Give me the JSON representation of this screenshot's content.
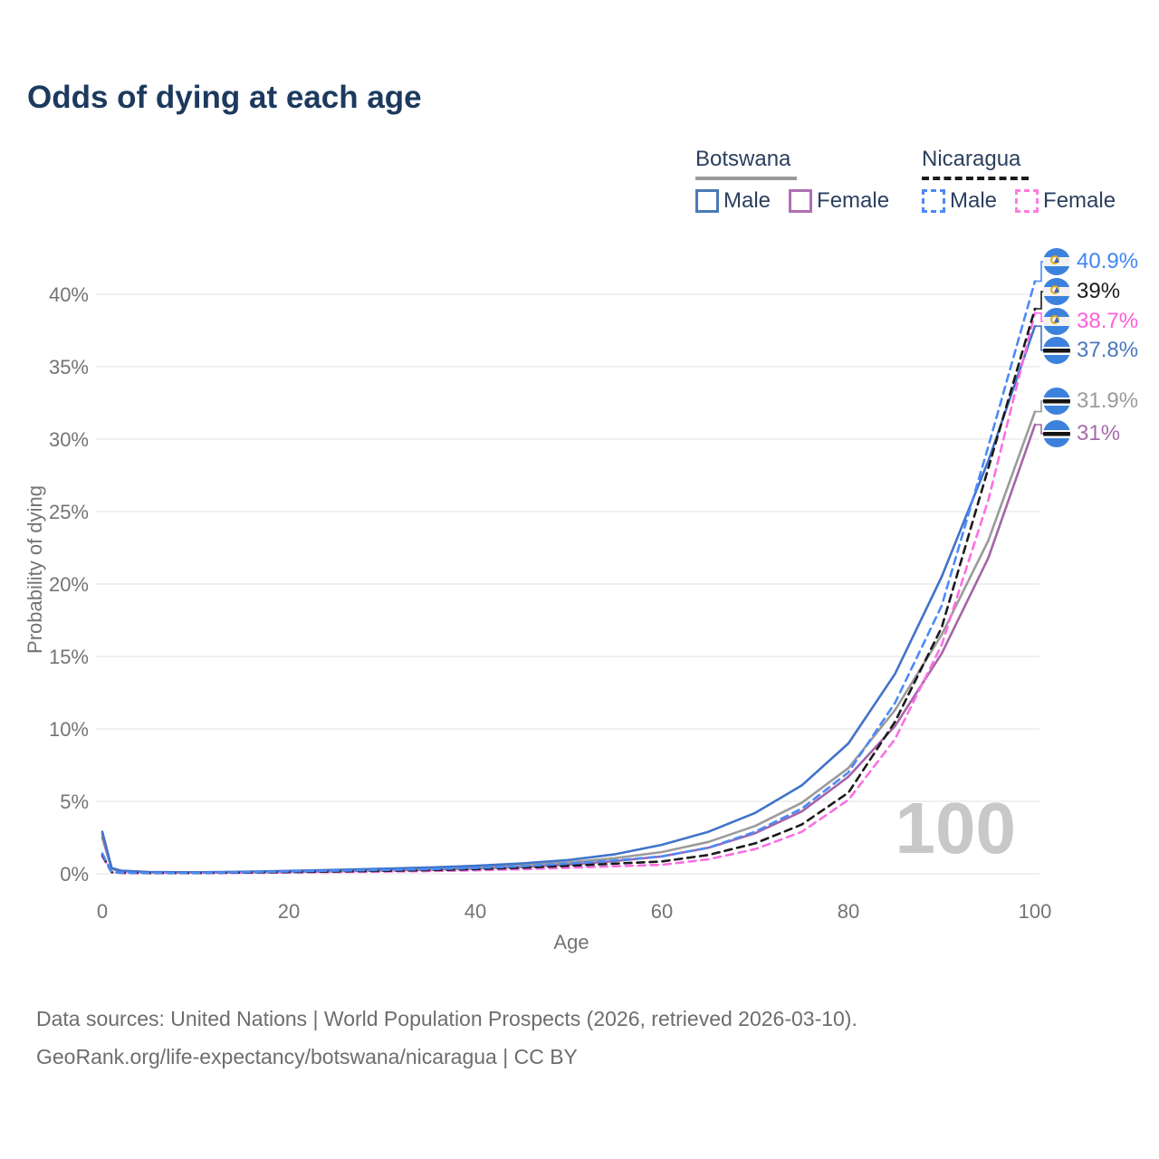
{
  "title": "Odds of dying at each age",
  "legend": {
    "botswana": {
      "label": "Botswana",
      "male": "Male",
      "female": "Female"
    },
    "nicaragua": {
      "label": "Nicaragua",
      "male": "Male",
      "female": "Female"
    }
  },
  "watermark": "100",
  "footer": {
    "line1": "Data sources: United Nations | World Population Prospects (2026, retrieved 2026-03-10).",
    "line2": "GeoRank.org/life-expectancy/botswana/nicaragua | CC BY"
  },
  "colors": {
    "title": "#1c3a5e",
    "axis_text": "#747474",
    "gridline": "#e7e7e7",
    "watermark": "#c8c8c8",
    "footer_text": "#6d6d6d"
  },
  "chart_data": {
    "type": "line",
    "title": "Odds of dying at each age",
    "xlabel": "Age",
    "ylabel": "Probability of dying",
    "xlim": [
      0,
      100
    ],
    "ylim": [
      0,
      42.5
    ],
    "grid": "horizontal",
    "legend_position": "top-right",
    "x_ticks": [
      0,
      20,
      40,
      60,
      80,
      100
    ],
    "y_ticks": [
      {
        "value": 0,
        "label": "0%"
      },
      {
        "value": 5,
        "label": "5%"
      },
      {
        "value": 10,
        "label": "10%"
      },
      {
        "value": 15,
        "label": "15%"
      },
      {
        "value": 20,
        "label": "20%"
      },
      {
        "value": 25,
        "label": "25%"
      },
      {
        "value": 30,
        "label": "30%"
      },
      {
        "value": 35,
        "label": "35%"
      },
      {
        "value": 40,
        "label": "40%"
      }
    ],
    "ages": [
      0,
      1,
      2,
      5,
      10,
      15,
      20,
      25,
      30,
      35,
      40,
      45,
      50,
      55,
      60,
      65,
      70,
      75,
      80,
      85,
      90,
      95,
      100
    ],
    "series": [
      {
        "name": "Nicaragua Male",
        "country": "Nicaragua",
        "sex": "male",
        "style": "dashed",
        "color": "#4b8af7",
        "flag": "nicaragua",
        "end_label": "40.9%",
        "label_color": "#4285f4",
        "values": [
          1.4,
          0.12,
          0.08,
          0.06,
          0.06,
          0.1,
          0.16,
          0.21,
          0.26,
          0.32,
          0.4,
          0.52,
          0.7,
          0.92,
          1.2,
          1.8,
          2.9,
          4.5,
          7.0,
          11.8,
          18.5,
          29.5,
          40.9
        ]
      },
      {
        "name": "Nicaragua Both sexes",
        "country": "Nicaragua",
        "sex": "both",
        "style": "dashed",
        "color": "#1b1b1b",
        "flag": "nicaragua",
        "end_label": "39%",
        "label_color": "#1b1b1b",
        "values": [
          1.3,
          0.11,
          0.07,
          0.05,
          0.05,
          0.08,
          0.12,
          0.16,
          0.2,
          0.25,
          0.32,
          0.42,
          0.55,
          0.7,
          0.85,
          1.3,
          2.1,
          3.4,
          5.6,
          10.5,
          17.0,
          28.0,
          39.0
        ]
      },
      {
        "name": "Nicaragua Female",
        "country": "Nicaragua",
        "sex": "female",
        "style": "dashed",
        "color": "#fb6fe4",
        "flag": "nicaragua",
        "end_label": "38.7%",
        "label_color": "#fb5fd9",
        "values": [
          1.2,
          0.1,
          0.06,
          0.05,
          0.05,
          0.06,
          0.09,
          0.12,
          0.15,
          0.19,
          0.24,
          0.31,
          0.41,
          0.52,
          0.62,
          1.0,
          1.7,
          2.9,
          5.1,
          9.3,
          15.8,
          25.8,
          38.7
        ]
      },
      {
        "name": "Botswana Male",
        "country": "Botswana",
        "sex": "male",
        "style": "solid",
        "color": "#4173c9",
        "flag": "botswana",
        "end_label": "37.8%",
        "label_color": "#4a78bc",
        "values": [
          2.9,
          0.4,
          0.22,
          0.12,
          0.1,
          0.14,
          0.2,
          0.27,
          0.35,
          0.44,
          0.55,
          0.72,
          0.95,
          1.35,
          2.0,
          2.9,
          4.2,
          6.1,
          9.0,
          13.8,
          20.5,
          28.5,
          37.8
        ]
      },
      {
        "name": "Botswana Both sexes",
        "country": "Botswana",
        "sex": "both",
        "style": "solid",
        "color": "#9b9b9b",
        "flag": "botswana",
        "end_label": "31.9%",
        "label_color": "#9b9b9b",
        "values": [
          2.7,
          0.37,
          0.2,
          0.11,
          0.09,
          0.11,
          0.16,
          0.22,
          0.28,
          0.36,
          0.45,
          0.58,
          0.78,
          1.08,
          1.5,
          2.2,
          3.3,
          4.9,
          7.3,
          11.3,
          16.5,
          23.0,
          31.9
        ]
      },
      {
        "name": "Botswana Female",
        "country": "Botswana",
        "sex": "female",
        "style": "solid",
        "color": "#a565a8",
        "flag": "botswana",
        "end_label": "31%",
        "label_color": "#a76aa8",
        "values": [
          2.5,
          0.34,
          0.18,
          0.1,
          0.08,
          0.09,
          0.13,
          0.17,
          0.22,
          0.29,
          0.37,
          0.47,
          0.63,
          0.88,
          1.2,
          1.8,
          2.8,
          4.3,
          6.7,
          10.2,
          15.2,
          21.8,
          31.0
        ]
      }
    ]
  }
}
